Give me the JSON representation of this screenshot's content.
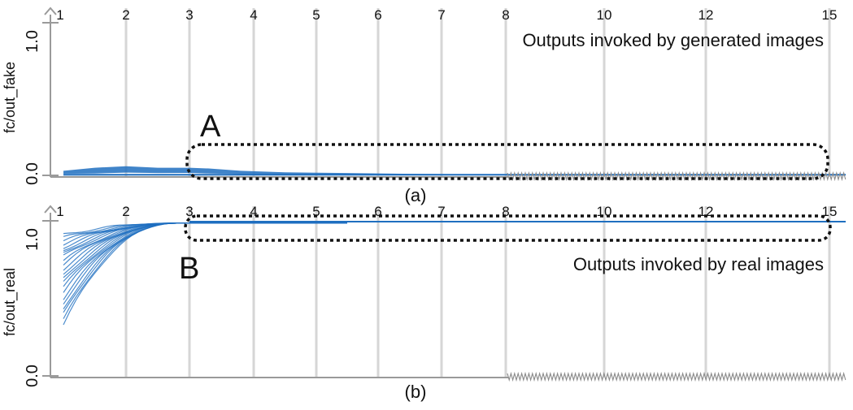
{
  "chart_data": [
    {
      "type": "line",
      "ylabel": "fc/out_fake",
      "yticks": [
        "0.0",
        "1.0"
      ],
      "ylim": [
        0,
        1
      ],
      "top_tick_labels": [
        "1",
        "2",
        "3",
        "4",
        "5",
        "6",
        "7",
        "8",
        "10",
        "12",
        "15"
      ],
      "annotation": "Outputs invoked by generated images",
      "caption": "(a)",
      "region_label": "A",
      "series_band": {
        "x": [
          1,
          1.5,
          2,
          2.5,
          3,
          3.3,
          3.8,
          4.5,
          5.5,
          6.5,
          8,
          10,
          12,
          15
        ],
        "upper": [
          0.03,
          0.05,
          0.06,
          0.05,
          0.05,
          0.045,
          0.03,
          0.02,
          0.015,
          0.01,
          0.005,
          0.004,
          0.003,
          0.003
        ],
        "lower": [
          0.01,
          0.012,
          0.018,
          0.015,
          0.016,
          0.012,
          0.008,
          0.005,
          0.004,
          0.003,
          0.002,
          0.002,
          0.002,
          0.002
        ]
      },
      "color": "#1f6fc0",
      "grid": true
    },
    {
      "type": "line",
      "ylabel": "fc/out_real",
      "yticks": [
        "0.0",
        "1.0"
      ],
      "ylim": [
        0,
        1
      ],
      "top_tick_labels": [
        "1",
        "2",
        "3",
        "4",
        "5",
        "6",
        "7",
        "8",
        "10",
        "12",
        "15"
      ],
      "annotation": "Outputs invoked by real images",
      "caption": "(b)",
      "region_label": "B",
      "series_starts": [
        0.33,
        0.36,
        0.4,
        0.43,
        0.47,
        0.5,
        0.54,
        0.57,
        0.6,
        0.63,
        0.66,
        0.69,
        0.72,
        0.74,
        0.77,
        0.79,
        0.81,
        0.83,
        0.85,
        0.87,
        0.89,
        0.91
      ],
      "color": "#1f6fc0",
      "grid": true
    }
  ]
}
